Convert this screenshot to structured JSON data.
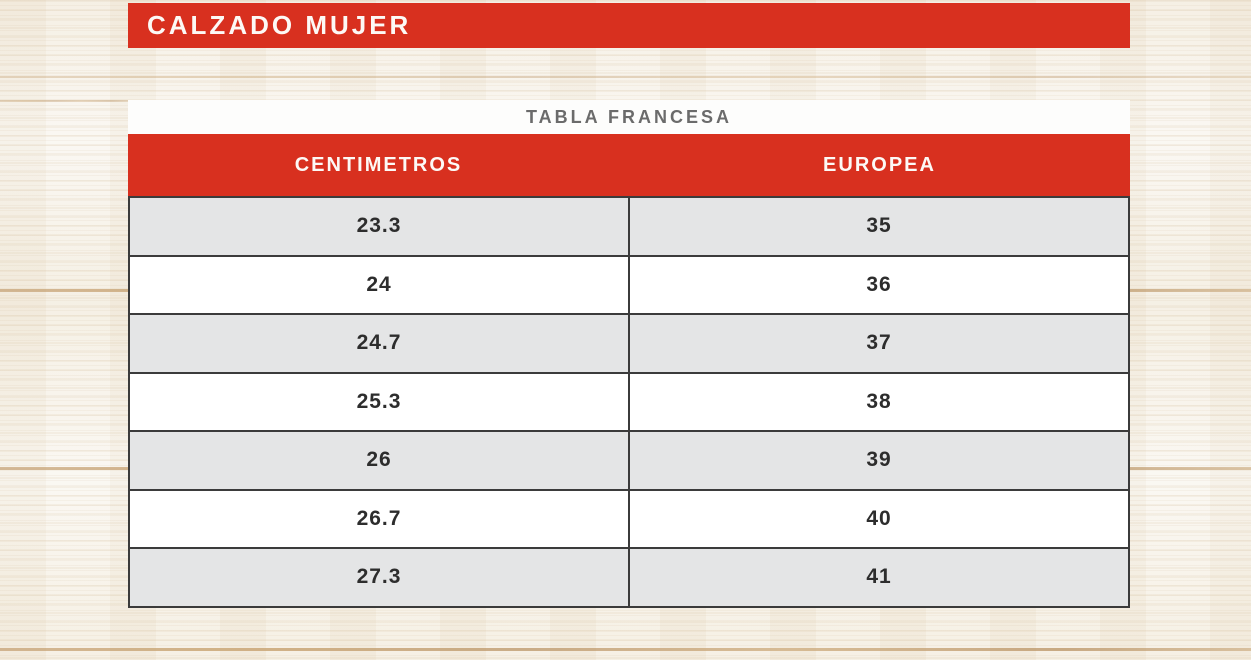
{
  "banner": {
    "title": "CALZADO MUJER"
  },
  "chart_data": {
    "type": "table",
    "section_title": "CALZADO MUJER",
    "title": "TABLA FRANCESA",
    "columns": [
      "CENTIMETROS",
      "EUROPEA"
    ],
    "rows": [
      [
        23.3,
        35
      ],
      [
        24,
        36
      ],
      [
        24.7,
        37
      ],
      [
        25.3,
        38
      ],
      [
        26,
        39
      ],
      [
        26.7,
        40
      ],
      [
        27.3,
        41
      ]
    ]
  },
  "colors": {
    "accent_red": "#d8301f",
    "row_alt_gray": "#e4e5e6",
    "border_dark": "#3b3b3b",
    "title_gray": "#6b6b6b",
    "wood_background": "#f8f5ee",
    "plank_line_tan": "#b98d58"
  }
}
